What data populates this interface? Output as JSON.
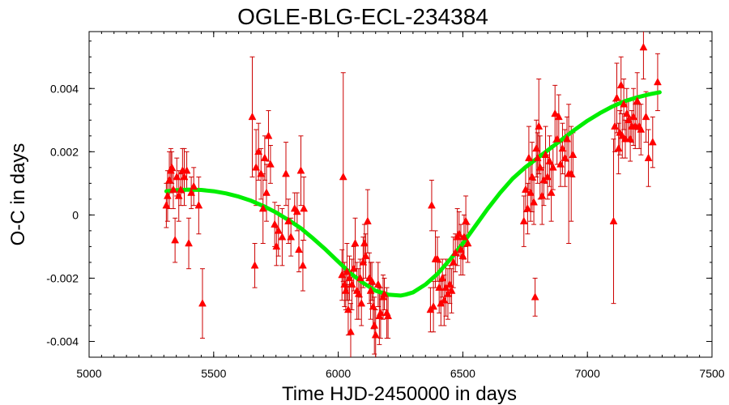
{
  "chart_data": {
    "type": "scatter",
    "title": "OGLE-BLG-ECL-234384",
    "xlabel": "Time HJD-2450000 in days",
    "ylabel": "O-C in days",
    "xlim": [
      5000,
      7500
    ],
    "ylim": [
      -0.0045,
      0.0058
    ],
    "xticks": [
      "5000",
      "5500",
      "6000",
      "6500",
      "7000",
      "7500"
    ],
    "yticks": [
      "-0.004",
      "-0.002",
      "0",
      "0.002",
      "0.004"
    ],
    "xtick_values": [
      5000,
      5500,
      6000,
      6500,
      7000,
      7500
    ],
    "ytick_values": [
      -0.004,
      -0.002,
      0,
      0.002,
      0.004
    ],
    "grid": false,
    "colors": {
      "points": "#ff0000",
      "errorbars": "#cc0000",
      "fit": "#00ee00"
    },
    "series": [
      {
        "kind": "points-with-errors",
        "points": [
          {
            "x": 5310,
            "y": 0.0003,
            "err": 0.0007
          },
          {
            "x": 5315,
            "y": 0.0006,
            "err": 0.0008
          },
          {
            "x": 5322,
            "y": 0.0011,
            "err": 0.0009
          },
          {
            "x": 5328,
            "y": 0.0014,
            "err": 0.0007
          },
          {
            "x": 5332,
            "y": 0.0015,
            "err": 0.0005
          },
          {
            "x": 5338,
            "y": 0.0008,
            "err": 0.0006
          },
          {
            "x": 5345,
            "y": -0.0008,
            "err": 0.0007
          },
          {
            "x": 5352,
            "y": 0.0012,
            "err": 0.0006
          },
          {
            "x": 5360,
            "y": 0.0006,
            "err": 0.0008
          },
          {
            "x": 5368,
            "y": 0.0008,
            "err": 0.0005
          },
          {
            "x": 5375,
            "y": 0.0014,
            "err": 0.0007
          },
          {
            "x": 5382,
            "y": 0.0012,
            "err": 0.0009
          },
          {
            "x": 5392,
            "y": 0.0014,
            "err": 0.0006
          },
          {
            "x": 5400,
            "y": -0.0009,
            "err": 0.0008
          },
          {
            "x": 5410,
            "y": 0.0007,
            "err": 0.0005
          },
          {
            "x": 5420,
            "y": 0.0009,
            "err": 0.0006
          },
          {
            "x": 5440,
            "y": 0.0003,
            "err": 0.0009
          },
          {
            "x": 5455,
            "y": -0.0028,
            "err": 0.0011
          },
          {
            "x": 5655,
            "y": 0.0031,
            "err": 0.0019
          },
          {
            "x": 5665,
            "y": -0.0016,
            "err": 0.0007
          },
          {
            "x": 5670,
            "y": 0.0015,
            "err": 0.0012
          },
          {
            "x": 5680,
            "y": 0.002,
            "err": 0.0009
          },
          {
            "x": 5690,
            "y": 0.0013,
            "err": 0.0008
          },
          {
            "x": 5698,
            "y": 0.0002,
            "err": 0.0011
          },
          {
            "x": 5705,
            "y": 0.0018,
            "err": 0.0007
          },
          {
            "x": 5712,
            "y": 0.0007,
            "err": 0.0009
          },
          {
            "x": 5720,
            "y": 0.0025,
            "err": 0.0008
          },
          {
            "x": 5728,
            "y": 0.0016,
            "err": 0.0006
          },
          {
            "x": 5745,
            "y": -0.0003,
            "err": 0.0007
          },
          {
            "x": 5752,
            "y": -0.001,
            "err": 0.0006
          },
          {
            "x": 5760,
            "y": -0.0005,
            "err": 0.0008
          },
          {
            "x": 5775,
            "y": -0.0007,
            "err": 0.0009
          },
          {
            "x": 5790,
            "y": 0.0013,
            "err": 0.001
          },
          {
            "x": 5800,
            "y": -0.0002,
            "err": 0.0007
          },
          {
            "x": 5810,
            "y": -0.0007,
            "err": 0.0006
          },
          {
            "x": 5825,
            "y": 0.0002,
            "err": 0.0005
          },
          {
            "x": 5835,
            "y": 0.0001,
            "err": 0.0006
          },
          {
            "x": 5842,
            "y": -0.0011,
            "err": 0.0007
          },
          {
            "x": 5850,
            "y": 0.0014,
            "err": 0.0011
          },
          {
            "x": 5858,
            "y": -0.0016,
            "err": 0.0008
          },
          {
            "x": 5862,
            "y": 0.0002,
            "err": 0.001
          },
          {
            "x": 6015,
            "y": -0.0019,
            "err": 0.0008
          },
          {
            "x": 6020,
            "y": 0.0012,
            "err": 0.0033
          },
          {
            "x": 6025,
            "y": -0.0022,
            "err": 0.0007
          },
          {
            "x": 6030,
            "y": -0.0024,
            "err": 0.0006
          },
          {
            "x": 6035,
            "y": -0.0018,
            "err": 0.0009
          },
          {
            "x": 6040,
            "y": -0.003,
            "err": 0.0008
          },
          {
            "x": 6045,
            "y": -0.002,
            "err": 0.0007
          },
          {
            "x": 6050,
            "y": -0.0037,
            "err": 0.0009
          },
          {
            "x": 6055,
            "y": -0.0022,
            "err": 0.0008
          },
          {
            "x": 6062,
            "y": -0.0017,
            "err": 0.0007
          },
          {
            "x": 6068,
            "y": -0.0009,
            "err": 0.0008
          },
          {
            "x": 6075,
            "y": -0.0024,
            "err": 0.0009
          },
          {
            "x": 6082,
            "y": -0.0025,
            "err": 0.0008
          },
          {
            "x": 6088,
            "y": -0.002,
            "err": 0.0006
          },
          {
            "x": 6093,
            "y": -0.0028,
            "err": 0.0007
          },
          {
            "x": 6100,
            "y": -0.0015,
            "err": 0.0008
          },
          {
            "x": 6105,
            "y": -0.0009,
            "err": 0.0006
          },
          {
            "x": 6110,
            "y": -0.0013,
            "err": 0.0007
          },
          {
            "x": 6118,
            "y": -0.0002,
            "err": 0.001
          },
          {
            "x": 6125,
            "y": -0.002,
            "err": 0.0008
          },
          {
            "x": 6130,
            "y": -0.0024,
            "err": 0.0009
          },
          {
            "x": 6135,
            "y": -0.0021,
            "err": 0.0006
          },
          {
            "x": 6140,
            "y": -0.0029,
            "err": 0.0007
          },
          {
            "x": 6145,
            "y": -0.0035,
            "err": 0.0009
          },
          {
            "x": 6150,
            "y": -0.0038,
            "err": 0.0008
          },
          {
            "x": 6160,
            "y": -0.0022,
            "err": 0.0007
          },
          {
            "x": 6165,
            "y": -0.0032,
            "err": 0.0009
          },
          {
            "x": 6170,
            "y": -0.0031,
            "err": 0.0008
          },
          {
            "x": 6180,
            "y": -0.0026,
            "err": 0.0007
          },
          {
            "x": 6185,
            "y": -0.0025,
            "err": 0.0005
          },
          {
            "x": 6195,
            "y": -0.0031,
            "err": 0.0008
          },
          {
            "x": 6200,
            "y": -0.0032,
            "err": 0.0007
          },
          {
            "x": 6370,
            "y": -0.003,
            "err": 0.0007
          },
          {
            "x": 6375,
            "y": 0.0003,
            "err": 0.0008
          },
          {
            "x": 6382,
            "y": -0.0029,
            "err": 0.0008
          },
          {
            "x": 6390,
            "y": -0.0014,
            "err": 0.0009
          },
          {
            "x": 6398,
            "y": -0.0014,
            "err": 0.0007
          },
          {
            "x": 6405,
            "y": -0.0023,
            "err": 0.0008
          },
          {
            "x": 6412,
            "y": -0.0028,
            "err": 0.0007
          },
          {
            "x": 6418,
            "y": -0.002,
            "err": 0.0006
          },
          {
            "x": 6425,
            "y": -0.0027,
            "err": 0.0008
          },
          {
            "x": 6432,
            "y": -0.0023,
            "err": 0.0009
          },
          {
            "x": 6440,
            "y": -0.0025,
            "err": 0.0008
          },
          {
            "x": 6448,
            "y": -0.0022,
            "err": 0.0006
          },
          {
            "x": 6455,
            "y": -0.0024,
            "err": 0.0007
          },
          {
            "x": 6462,
            "y": -0.0015,
            "err": 0.0008
          },
          {
            "x": 6470,
            "y": -0.0012,
            "err": 0.0006
          },
          {
            "x": 6478,
            "y": -0.0007,
            "err": 0.0009
          },
          {
            "x": 6485,
            "y": -0.0006,
            "err": 0.0007
          },
          {
            "x": 6492,
            "y": -0.0011,
            "err": 0.0008
          },
          {
            "x": 6500,
            "y": -0.0013,
            "err": 0.0006
          },
          {
            "x": 6505,
            "y": -0.0007,
            "err": 0.0007
          },
          {
            "x": 6512,
            "y": -0.0002,
            "err": 0.0008
          },
          {
            "x": 6520,
            "y": -0.0009,
            "err": 0.0006
          },
          {
            "x": 6745,
            "y": -0.0002,
            "err": 0.0008
          },
          {
            "x": 6752,
            "y": 0.0008,
            "err": 0.0007
          },
          {
            "x": 6760,
            "y": 0.0002,
            "err": 0.0008
          },
          {
            "x": 6765,
            "y": 0.0018,
            "err": 0.001
          },
          {
            "x": 6772,
            "y": 0.0007,
            "err": 0.0009
          },
          {
            "x": 6778,
            "y": 0.0012,
            "err": 0.0011
          },
          {
            "x": 6785,
            "y": 0.0004,
            "err": 0.0007
          },
          {
            "x": 6790,
            "y": -0.0026,
            "err": 0.0006
          },
          {
            "x": 6795,
            "y": 0.0021,
            "err": 0.0009
          },
          {
            "x": 6800,
            "y": 0.0018,
            "err": 0.0008
          },
          {
            "x": 6805,
            "y": 0.0028,
            "err": 0.0015
          },
          {
            "x": 6810,
            "y": 0.0015,
            "err": 0.001
          },
          {
            "x": 6818,
            "y": 0.0006,
            "err": 0.0009
          },
          {
            "x": 6825,
            "y": 0.0011,
            "err": 0.0008
          },
          {
            "x": 6832,
            "y": 0.0019,
            "err": 0.0009
          },
          {
            "x": 6840,
            "y": 0.0012,
            "err": 0.0007
          },
          {
            "x": 6848,
            "y": 0.0017,
            "err": 0.0008
          },
          {
            "x": 6855,
            "y": 0.0007,
            "err": 0.0009
          },
          {
            "x": 6862,
            "y": 0.0015,
            "err": 0.0007
          },
          {
            "x": 6870,
            "y": 0.0032,
            "err": 0.0009
          },
          {
            "x": 6878,
            "y": 0.0024,
            "err": 0.0008
          },
          {
            "x": 6885,
            "y": 0.0031,
            "err": 0.0007
          },
          {
            "x": 6892,
            "y": 0.0016,
            "err": 0.0007
          },
          {
            "x": 6900,
            "y": 0.0021,
            "err": 0.0008
          },
          {
            "x": 6910,
            "y": 0.0018,
            "err": 0.0009
          },
          {
            "x": 6918,
            "y": 0.0024,
            "err": 0.0007
          },
          {
            "x": 6925,
            "y": 0.0013,
            "err": 0.0022
          },
          {
            "x": 6935,
            "y": 0.0013,
            "err": 0.0015
          },
          {
            "x": 6942,
            "y": 0.0019,
            "err": 0.0007
          },
          {
            "x": 7105,
            "y": -0.0002,
            "err": 0.0026
          },
          {
            "x": 7110,
            "y": 0.0028,
            "err": 0.0008
          },
          {
            "x": 7118,
            "y": 0.0037,
            "err": 0.0011
          },
          {
            "x": 7125,
            "y": 0.0021,
            "err": 0.0008
          },
          {
            "x": 7130,
            "y": 0.0026,
            "err": 0.0007
          },
          {
            "x": 7135,
            "y": 0.0041,
            "err": 0.0009
          },
          {
            "x": 7140,
            "y": 0.0025,
            "err": 0.0007
          },
          {
            "x": 7146,
            "y": 0.0035,
            "err": 0.0008
          },
          {
            "x": 7152,
            "y": 0.0024,
            "err": 0.0006
          },
          {
            "x": 7158,
            "y": 0.0032,
            "err": 0.0008
          },
          {
            "x": 7165,
            "y": 0.003,
            "err": 0.0006
          },
          {
            "x": 7172,
            "y": 0.0024,
            "err": 0.0007
          },
          {
            "x": 7178,
            "y": 0.0028,
            "err": 0.0005
          },
          {
            "x": 7185,
            "y": 0.0031,
            "err": 0.0009
          },
          {
            "x": 7192,
            "y": 0.0028,
            "err": 0.0007
          },
          {
            "x": 7200,
            "y": 0.0036,
            "err": 0.0009
          },
          {
            "x": 7208,
            "y": 0.0028,
            "err": 0.0007
          },
          {
            "x": 7215,
            "y": 0.0027,
            "err": 0.0008
          },
          {
            "x": 7225,
            "y": 0.0053,
            "err": 0.001
          },
          {
            "x": 7235,
            "y": 0.0031,
            "err": 0.0008
          },
          {
            "x": 7245,
            "y": 0.0018,
            "err": 0.0009
          },
          {
            "x": 7262,
            "y": 0.0023,
            "err": 0.0008
          },
          {
            "x": 7282,
            "y": 0.0042,
            "err": 0.0009
          }
        ]
      },
      {
        "kind": "fit-curve",
        "x": [
          5310,
          5350,
          5400,
          5450,
          5500,
          5550,
          5600,
          5650,
          5700,
          5750,
          5800,
          5850,
          5900,
          5950,
          6000,
          6050,
          6100,
          6150,
          6200,
          6250,
          6270,
          6300,
          6350,
          6400,
          6450,
          6500,
          6550,
          6600,
          6650,
          6700,
          6750,
          6800,
          6850,
          6900,
          6950,
          7000,
          7050,
          7100,
          7150,
          7200,
          7250,
          7290
        ],
        "y": [
          0.00075,
          0.00078,
          0.0008,
          0.00079,
          0.00075,
          0.00068,
          0.00058,
          0.00045,
          0.00028,
          8e-05,
          -0.00016,
          -0.00042,
          -0.00075,
          -0.0011,
          -0.00148,
          -0.00185,
          -0.00215,
          -0.0024,
          -0.00252,
          -0.00255,
          -0.00252,
          -0.00245,
          -0.0022,
          -0.00185,
          -0.0014,
          -0.0009,
          -0.00035,
          0.0002,
          0.0007,
          0.00115,
          0.0015,
          0.0018,
          0.0021,
          0.0024,
          0.0027,
          0.00298,
          0.00322,
          0.00343,
          0.0036,
          0.00372,
          0.00382,
          0.00388
        ]
      }
    ]
  }
}
